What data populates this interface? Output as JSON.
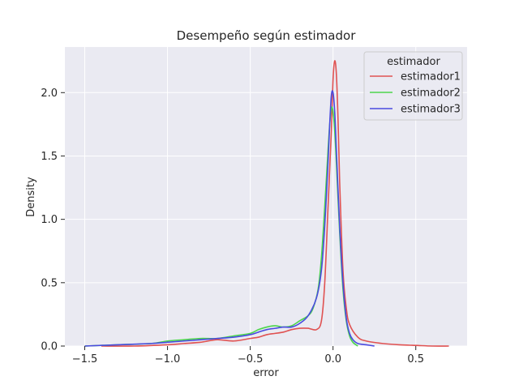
{
  "chart_data": {
    "type": "line",
    "title": "Desempeño según estimador",
    "xlabel": "error",
    "ylabel": "Density",
    "xlim": [
      -1.62,
      0.81
    ],
    "ylim": [
      0,
      2.36
    ],
    "xticks": [
      -1.5,
      -1.0,
      -0.5,
      0.0,
      0.5
    ],
    "xtick_labels": [
      "−1.5",
      "−1.0",
      "−0.5",
      "0.0",
      "0.5"
    ],
    "yticks": [
      0.0,
      0.5,
      1.0,
      1.5,
      2.0
    ],
    "ytick_labels": [
      "0.0",
      "0.5",
      "1.0",
      "1.5",
      "2.0"
    ],
    "grid": true,
    "legend": {
      "title": "estimador",
      "placement": "top-right"
    },
    "series": [
      {
        "name": "estimador1",
        "color": "#e05252",
        "x": [
          -1.4,
          -1.2,
          -1.0,
          -0.9,
          -0.8,
          -0.7,
          -0.6,
          -0.5,
          -0.45,
          -0.4,
          -0.35,
          -0.3,
          -0.25,
          -0.2,
          -0.15,
          -0.1,
          -0.07,
          -0.05,
          -0.03,
          -0.01,
          0.0,
          0.01,
          0.02,
          0.03,
          0.04,
          0.06,
          0.08,
          0.1,
          0.15,
          0.2,
          0.3,
          0.4,
          0.5,
          0.6,
          0.7
        ],
        "y": [
          0.0,
          0.0,
          0.01,
          0.02,
          0.03,
          0.05,
          0.04,
          0.06,
          0.07,
          0.09,
          0.1,
          0.11,
          0.13,
          0.14,
          0.14,
          0.13,
          0.2,
          0.5,
          1.1,
          1.7,
          2.1,
          2.25,
          2.15,
          1.8,
          1.3,
          0.6,
          0.3,
          0.17,
          0.07,
          0.04,
          0.02,
          0.01,
          0.005,
          0.0,
          0.0
        ]
      },
      {
        "name": "estimador2",
        "color": "#4cd54c",
        "x": [
          -1.5,
          -1.3,
          -1.1,
          -1.0,
          -0.9,
          -0.8,
          -0.7,
          -0.6,
          -0.5,
          -0.45,
          -0.4,
          -0.35,
          -0.3,
          -0.25,
          -0.2,
          -0.15,
          -0.12,
          -0.09,
          -0.07,
          -0.05,
          -0.03,
          -0.02,
          -0.01,
          0.0,
          0.01,
          0.02,
          0.04,
          0.06,
          0.08,
          0.1,
          0.12,
          0.15
        ],
        "y": [
          0.0,
          0.01,
          0.02,
          0.04,
          0.05,
          0.06,
          0.06,
          0.08,
          0.1,
          0.13,
          0.15,
          0.16,
          0.15,
          0.16,
          0.2,
          0.24,
          0.3,
          0.45,
          0.7,
          1.1,
          1.55,
          1.75,
          1.88,
          1.85,
          1.7,
          1.45,
          0.9,
          0.45,
          0.2,
          0.08,
          0.03,
          0.0
        ]
      },
      {
        "name": "estimador3",
        "color": "#4a4ae0",
        "x": [
          -1.5,
          -1.3,
          -1.1,
          -1.0,
          -0.9,
          -0.8,
          -0.7,
          -0.6,
          -0.5,
          -0.45,
          -0.4,
          -0.35,
          -0.3,
          -0.25,
          -0.2,
          -0.15,
          -0.1,
          -0.07,
          -0.05,
          -0.03,
          -0.02,
          -0.01,
          0.0,
          0.01,
          0.02,
          0.04,
          0.06,
          0.08,
          0.1,
          0.12,
          0.15,
          0.2,
          0.25
        ],
        "y": [
          0.0,
          0.01,
          0.02,
          0.03,
          0.04,
          0.05,
          0.06,
          0.07,
          0.09,
          0.11,
          0.13,
          0.14,
          0.15,
          0.15,
          0.18,
          0.24,
          0.38,
          0.6,
          0.95,
          1.45,
          1.75,
          1.98,
          2.0,
          1.85,
          1.55,
          0.95,
          0.5,
          0.22,
          0.1,
          0.05,
          0.02,
          0.01,
          0.0
        ]
      }
    ]
  }
}
